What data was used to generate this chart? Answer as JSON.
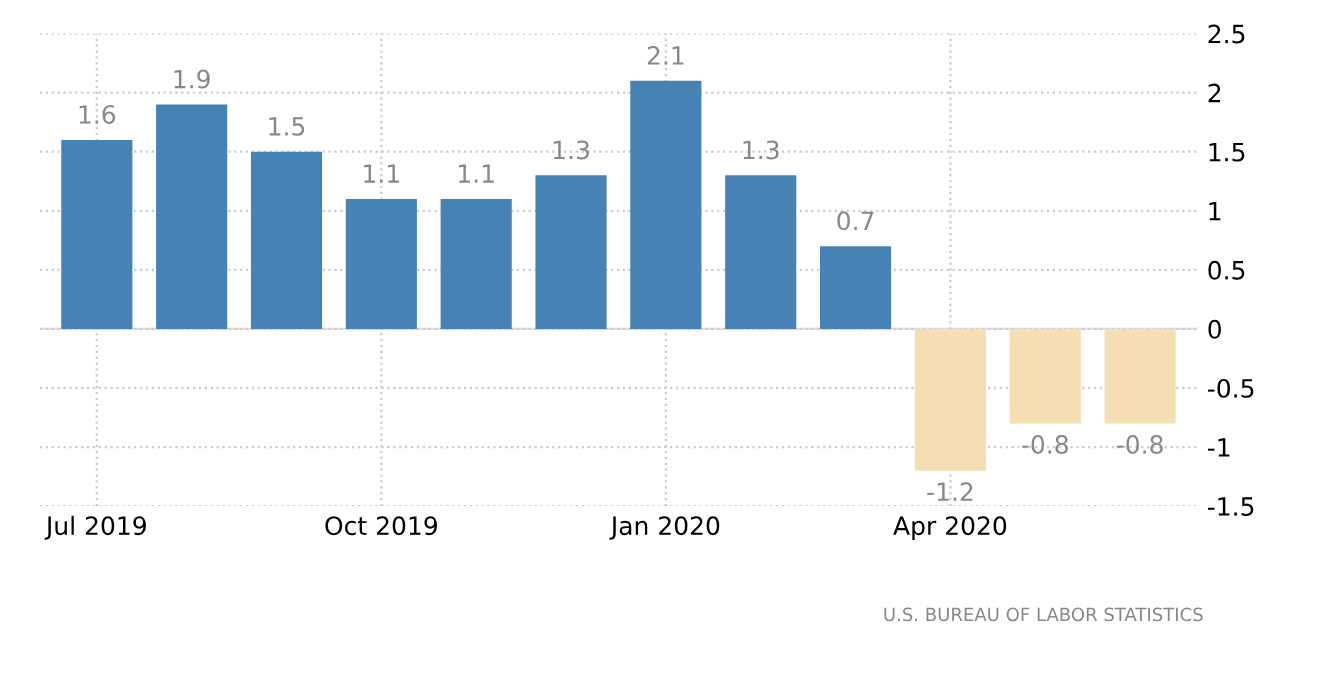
{
  "chart_data": {
    "type": "bar",
    "categories": [
      "Jul 2019",
      null,
      null,
      "Oct 2019",
      null,
      null,
      "Jan 2020",
      null,
      null,
      "Apr 2020",
      null,
      null
    ],
    "values": [
      1.6,
      1.9,
      1.5,
      1.1,
      1.1,
      1.3,
      2.1,
      1.3,
      0.7,
      -1.2,
      -0.8,
      -0.8
    ],
    "colors": [
      "#4682b4",
      "#4682b4",
      "#4682b4",
      "#4682b4",
      "#4682b4",
      "#4682b4",
      "#4682b4",
      "#4682b4",
      "#4682b4",
      "#f5deb3",
      "#f5deb3",
      "#f5deb3"
    ],
    "ylim": [
      -1.5,
      2.5
    ],
    "yticks": [
      2.5,
      2,
      1.5,
      1,
      0.5,
      0,
      -0.5,
      -1,
      -1.5
    ],
    "grid": true,
    "data_labels": true,
    "annotations": [
      "U.S. BUREAU OF LABOR STATISTICS"
    ]
  }
}
